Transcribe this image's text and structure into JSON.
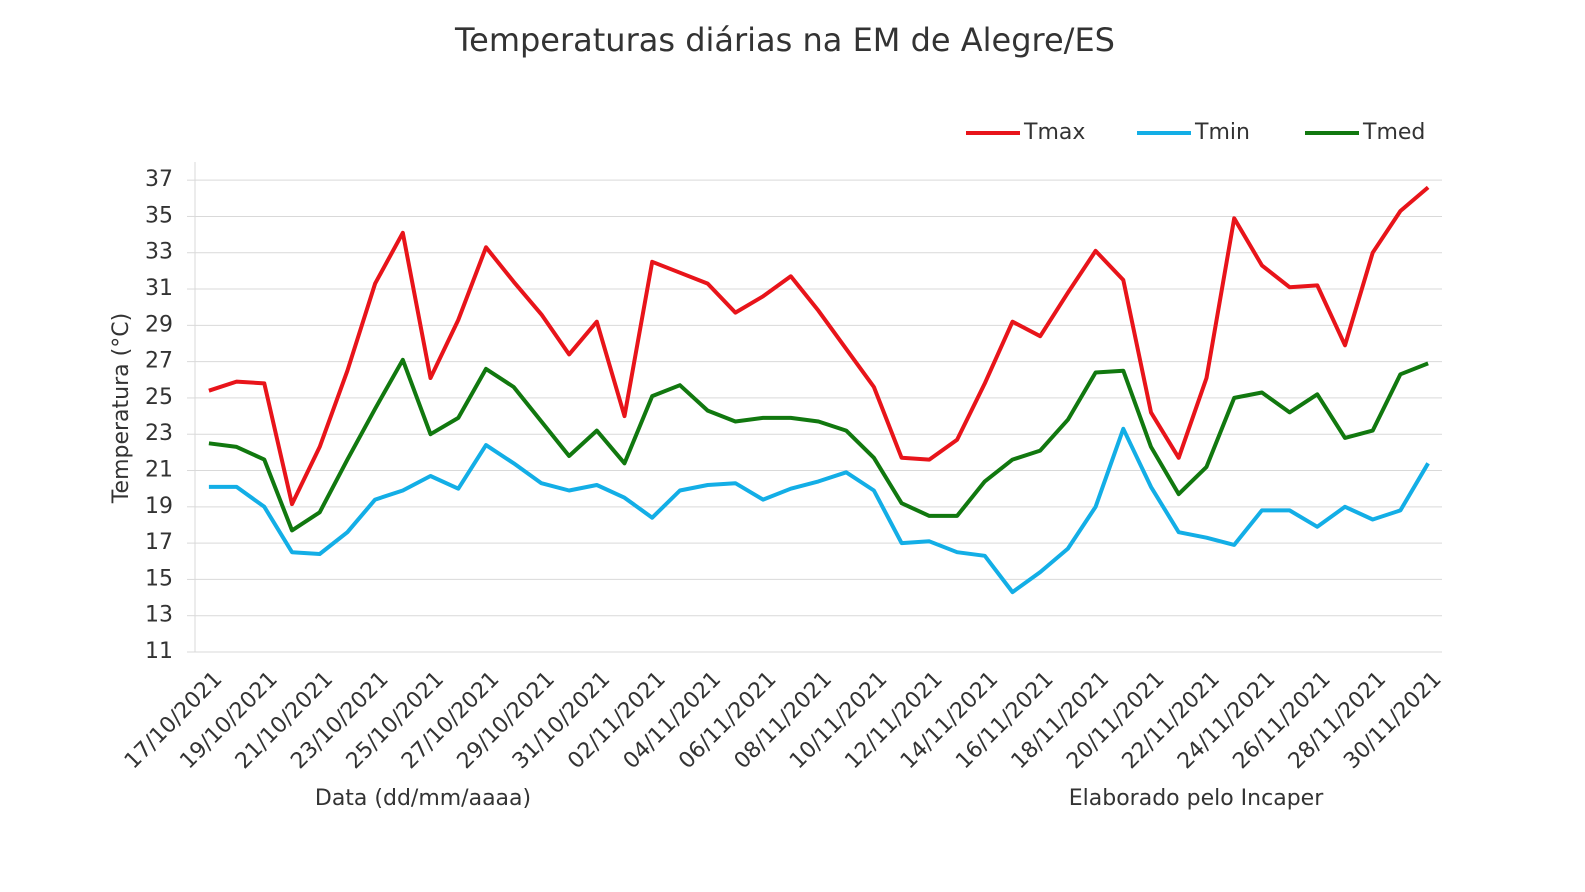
{
  "chart_data": {
    "type": "line",
    "title": "Temperaturas diárias na EM de Alegre/ES",
    "y_label": "Temperatura (°C)",
    "annotations": [
      "Data (dd/mm/aaaa)",
      "Elaborado pelo Incaper"
    ],
    "categories": [
      "17/10/2021",
      null,
      "19/10/2021",
      null,
      "21/10/2021",
      null,
      "23/10/2021",
      null,
      "25/10/2021",
      null,
      "27/10/2021",
      null,
      "29/10/2021",
      null,
      "31/10/2021",
      null,
      "02/11/2021",
      null,
      "04/11/2021",
      null,
      "06/11/2021",
      null,
      "08/11/2021",
      null,
      "10/11/2021",
      null,
      "12/11/2021",
      null,
      "14/11/2021",
      null,
      "16/11/2021",
      null,
      "18/11/2021",
      null,
      "20/11/2021",
      null,
      "22/11/2021",
      null,
      "24/11/2021",
      null,
      "26/11/2021",
      null,
      "28/11/2021",
      null,
      "30/11/2021"
    ],
    "series": [
      {
        "name": "Tmax",
        "color": "#e8141a",
        "values": [
          25.4,
          25.9,
          25.8,
          19.15,
          22.3,
          26.5,
          31.3,
          34.1,
          26.1,
          29.3,
          33.3,
          31.4,
          29.6,
          27.4,
          29.2,
          24.0,
          32.5,
          31.9,
          31.3,
          29.7,
          30.6,
          31.7,
          29.8,
          27.7,
          25.6,
          21.7,
          21.6,
          22.7,
          25.8,
          29.2,
          28.4,
          30.8,
          33.1,
          31.5,
          24.2,
          21.7,
          26.1,
          34.9,
          32.3,
          31.1,
          31.2,
          27.9,
          33.0,
          35.3,
          36.6
        ]
      },
      {
        "name": "Tmin",
        "color": "#13aee6",
        "values": [
          20.1,
          20.1,
          19.0,
          16.5,
          16.4,
          17.6,
          19.4,
          19.9,
          20.7,
          20.0,
          22.4,
          21.4,
          20.3,
          19.9,
          20.2,
          19.5,
          18.4,
          19.9,
          20.2,
          20.3,
          19.4,
          20.0,
          20.4,
          20.9,
          19.9,
          17.0,
          17.1,
          16.5,
          16.3,
          14.3,
          15.4,
          16.7,
          19.0,
          23.3,
          20.1,
          17.6,
          17.3,
          16.9,
          18.8,
          18.8,
          17.9,
          19.0,
          18.3,
          18.8,
          21.4
        ]
      },
      {
        "name": "Tmed",
        "color": "#11780f",
        "values": [
          22.5,
          22.3,
          21.6,
          17.7,
          18.7,
          21.6,
          24.4,
          27.1,
          23.0,
          23.9,
          26.6,
          25.6,
          23.7,
          21.8,
          23.2,
          21.4,
          25.1,
          25.7,
          24.3,
          23.7,
          23.9,
          23.9,
          23.7,
          23.2,
          21.7,
          19.2,
          18.5,
          18.5,
          20.4,
          21.6,
          22.1,
          23.8,
          26.4,
          26.5,
          22.3,
          19.7,
          21.2,
          25.0,
          25.3,
          24.2,
          25.2,
          22.8,
          23.2,
          26.3,
          26.9
        ]
      }
    ],
    "ylim": [
      11,
      38
    ],
    "yticks": [
      11,
      13,
      15,
      17,
      19,
      21,
      23,
      25,
      27,
      29,
      31,
      33,
      35,
      37
    ],
    "grid": true,
    "legend": "top-right"
  }
}
